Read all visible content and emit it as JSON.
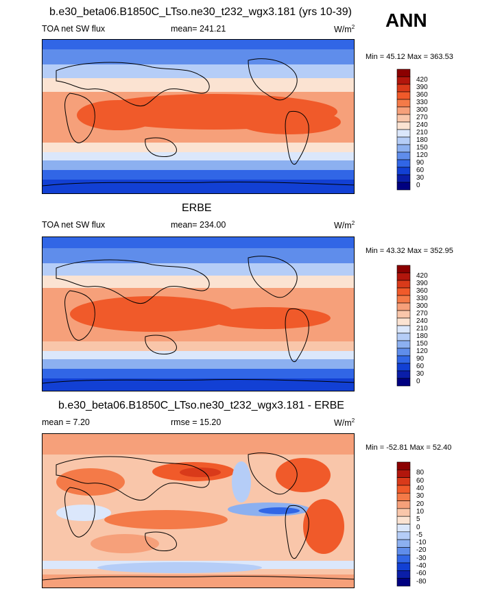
{
  "header": {
    "season": "ANN"
  },
  "panels": [
    {
      "id": "model",
      "title": "b.e30_beta06.B1850C_LTso.ne30_t232_wgx3.181 (yrs 10-39)",
      "left_label": "TOA net SW flux",
      "center_label": "mean= 241.21",
      "units": "W/m",
      "units_sup": "2",
      "minmax": "Min =  45.12 Max = 363.53"
    },
    {
      "id": "obs",
      "title": "ERBE",
      "left_label": "TOA net SW flux",
      "center_label": "mean= 234.00",
      "units": "W/m",
      "units_sup": "2",
      "minmax": "Min =  43.32 Max = 352.95"
    },
    {
      "id": "diff",
      "title": "b.e30_beta06.B1850C_LTso.ne30_t232_wgx3.181 - ERBE",
      "left_label": "mean =   7.20",
      "center_label": "rmse =  15.20",
      "units": "W/m",
      "units_sup": "2",
      "minmax": "Min = -52.81 Max =  52.40"
    }
  ],
  "chart_data": [
    {
      "type": "heatmap",
      "title": "b.e30_beta06.B1850C_LTso.ne30_t232_wgx3.181 (yrs 10-39)",
      "variable": "TOA net SW flux",
      "units": "W/m2",
      "mean": 241.21,
      "min": 45.12,
      "max": 363.53,
      "colorbar_levels": [
        "420",
        "390",
        "360",
        "330",
        "300",
        "270",
        "240",
        "210",
        "180",
        "150",
        "120",
        "90",
        "60",
        "30",
        "0"
      ],
      "colorbar_colors": [
        "#8b0000",
        "#b2160c",
        "#d93a1a",
        "#f05a2a",
        "#f47a48",
        "#f6a07a",
        "#f9c6aa",
        "#fbe3d2",
        "#dbe7fb",
        "#b5cdf7",
        "#8cb0f0",
        "#5f8deb",
        "#3166e6",
        "#1240d4",
        "#0a1ea8",
        "#000080"
      ]
    },
    {
      "type": "heatmap",
      "title": "ERBE",
      "variable": "TOA net SW flux",
      "units": "W/m2",
      "mean": 234.0,
      "min": 43.32,
      "max": 352.95,
      "colorbar_levels": [
        "420",
        "390",
        "360",
        "330",
        "300",
        "270",
        "240",
        "210",
        "180",
        "150",
        "120",
        "90",
        "60",
        "30",
        "0"
      ],
      "colorbar_colors": [
        "#8b0000",
        "#b2160c",
        "#d93a1a",
        "#f05a2a",
        "#f47a48",
        "#f6a07a",
        "#f9c6aa",
        "#fbe3d2",
        "#dbe7fb",
        "#b5cdf7",
        "#8cb0f0",
        "#5f8deb",
        "#3166e6",
        "#1240d4",
        "#0a1ea8",
        "#000080"
      ]
    },
    {
      "type": "heatmap",
      "title": "b.e30_beta06.B1850C_LTso.ne30_t232_wgx3.181 - ERBE",
      "variable": "",
      "units": "W/m2",
      "mean": 7.2,
      "rmse": 15.2,
      "min": -52.81,
      "max": 52.4,
      "colorbar_levels": [
        "80",
        "60",
        "40",
        "30",
        "20",
        "10",
        "5",
        "0",
        "-5",
        "-10",
        "-20",
        "-30",
        "-40",
        "-60",
        "-80"
      ],
      "colorbar_colors": [
        "#8b0000",
        "#b2160c",
        "#d93a1a",
        "#f05a2a",
        "#f47a48",
        "#f6a07a",
        "#f9c6aa",
        "#fbe3d2",
        "#dbe7fb",
        "#b5cdf7",
        "#8cb0f0",
        "#5f8deb",
        "#3166e6",
        "#1240d4",
        "#0a1ea8",
        "#000080"
      ]
    }
  ]
}
